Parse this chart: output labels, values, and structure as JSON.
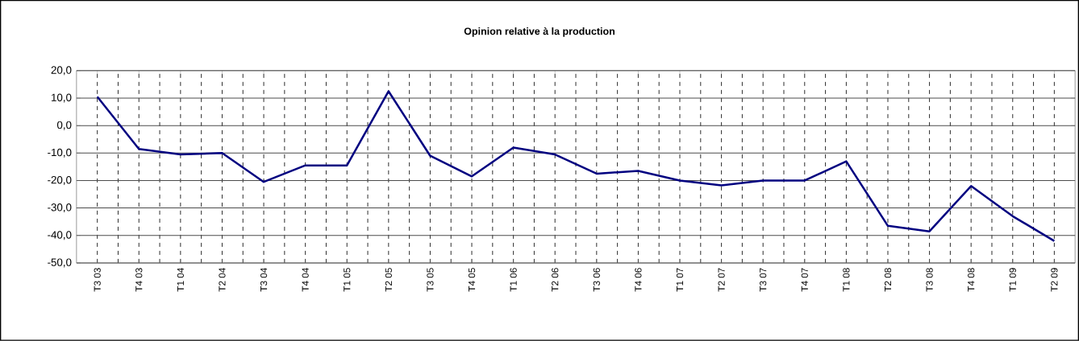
{
  "chart_data": {
    "type": "line",
    "title": "Opinion relative à la production",
    "categories": [
      "T3 03",
      "T4 03",
      "T1 04",
      "T2 04",
      "T3 04",
      "T4 04",
      "T1 05",
      "T2 05",
      "T3 05",
      "T4 05",
      "T1 06",
      "T2 06",
      "T3 06",
      "T4 06",
      "T1 07",
      "T2 07",
      "T3 07",
      "T4 07",
      "T1 08",
      "T2 08",
      "T3 08",
      "T4 08",
      "T1 09",
      "T2 09"
    ],
    "values": [
      10.5,
      -8.5,
      -10.5,
      -10,
      -20.5,
      -14.5,
      -14.5,
      12.5,
      -11,
      -18.5,
      -8,
      -10.5,
      -17.5,
      -16.5,
      -20,
      -21.8,
      -20,
      -20,
      -13,
      -36.5,
      -38.5,
      -22,
      -33,
      -42
    ],
    "color": "#000080",
    "ylim": [
      -50,
      20
    ],
    "yticks": [
      {
        "value": -50,
        "label": "-50,0"
      },
      {
        "value": -40,
        "label": "-40,0"
      },
      {
        "value": -30,
        "label": "-30,0"
      },
      {
        "value": -20,
        "label": "-20,0"
      },
      {
        "value": -10,
        "label": "-10,0"
      },
      {
        "value": 0,
        "label": "0,0"
      },
      {
        "value": 10,
        "label": "10,0"
      },
      {
        "value": 20,
        "label": "20,0"
      }
    ],
    "grid": true,
    "marker": "none",
    "line_style": "solid"
  }
}
